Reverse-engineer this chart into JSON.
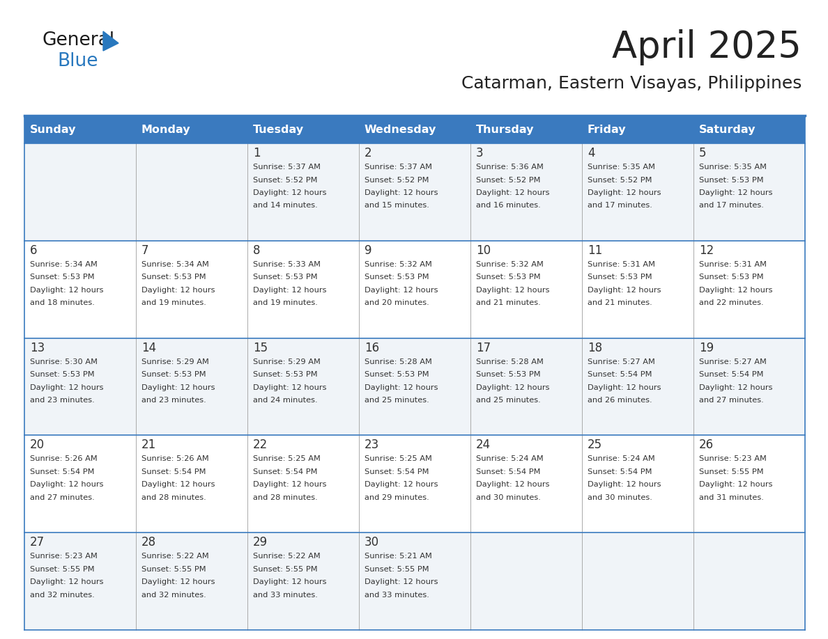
{
  "title": "April 2025",
  "subtitle": "Catarman, Eastern Visayas, Philippines",
  "days_of_week": [
    "Sunday",
    "Monday",
    "Tuesday",
    "Wednesday",
    "Thursday",
    "Friday",
    "Saturday"
  ],
  "header_bg": "#3a7abf",
  "header_text": "#ffffff",
  "row_bg_odd": "#f0f4f8",
  "row_bg_even": "#ffffff",
  "border_color": "#3a7abf",
  "text_color": "#333333",
  "title_color": "#222222",
  "subtitle_color": "#222222",
  "logo_general_color": "#1a1a1a",
  "logo_blue_color": "#2878be",
  "calendar_data": [
    {
      "day": 1,
      "col": 2,
      "row": 0,
      "sunrise": "5:37 AM",
      "sunset": "5:52 PM",
      "daylight_suffix": "14 minutes."
    },
    {
      "day": 2,
      "col": 3,
      "row": 0,
      "sunrise": "5:37 AM",
      "sunset": "5:52 PM",
      "daylight_suffix": "15 minutes."
    },
    {
      "day": 3,
      "col": 4,
      "row": 0,
      "sunrise": "5:36 AM",
      "sunset": "5:52 PM",
      "daylight_suffix": "16 minutes."
    },
    {
      "day": 4,
      "col": 5,
      "row": 0,
      "sunrise": "5:35 AM",
      "sunset": "5:52 PM",
      "daylight_suffix": "17 minutes."
    },
    {
      "day": 5,
      "col": 6,
      "row": 0,
      "sunrise": "5:35 AM",
      "sunset": "5:53 PM",
      "daylight_suffix": "17 minutes."
    },
    {
      "day": 6,
      "col": 0,
      "row": 1,
      "sunrise": "5:34 AM",
      "sunset": "5:53 PM",
      "daylight_suffix": "18 minutes."
    },
    {
      "day": 7,
      "col": 1,
      "row": 1,
      "sunrise": "5:34 AM",
      "sunset": "5:53 PM",
      "daylight_suffix": "19 minutes."
    },
    {
      "day": 8,
      "col": 2,
      "row": 1,
      "sunrise": "5:33 AM",
      "sunset": "5:53 PM",
      "daylight_suffix": "19 minutes."
    },
    {
      "day": 9,
      "col": 3,
      "row": 1,
      "sunrise": "5:32 AM",
      "sunset": "5:53 PM",
      "daylight_suffix": "20 minutes."
    },
    {
      "day": 10,
      "col": 4,
      "row": 1,
      "sunrise": "5:32 AM",
      "sunset": "5:53 PM",
      "daylight_suffix": "21 minutes."
    },
    {
      "day": 11,
      "col": 5,
      "row": 1,
      "sunrise": "5:31 AM",
      "sunset": "5:53 PM",
      "daylight_suffix": "21 minutes."
    },
    {
      "day": 12,
      "col": 6,
      "row": 1,
      "sunrise": "5:31 AM",
      "sunset": "5:53 PM",
      "daylight_suffix": "22 minutes."
    },
    {
      "day": 13,
      "col": 0,
      "row": 2,
      "sunrise": "5:30 AM",
      "sunset": "5:53 PM",
      "daylight_suffix": "23 minutes."
    },
    {
      "day": 14,
      "col": 1,
      "row": 2,
      "sunrise": "5:29 AM",
      "sunset": "5:53 PM",
      "daylight_suffix": "23 minutes."
    },
    {
      "day": 15,
      "col": 2,
      "row": 2,
      "sunrise": "5:29 AM",
      "sunset": "5:53 PM",
      "daylight_suffix": "24 minutes."
    },
    {
      "day": 16,
      "col": 3,
      "row": 2,
      "sunrise": "5:28 AM",
      "sunset": "5:53 PM",
      "daylight_suffix": "25 minutes."
    },
    {
      "day": 17,
      "col": 4,
      "row": 2,
      "sunrise": "5:28 AM",
      "sunset": "5:53 PM",
      "daylight_suffix": "25 minutes."
    },
    {
      "day": 18,
      "col": 5,
      "row": 2,
      "sunrise": "5:27 AM",
      "sunset": "5:54 PM",
      "daylight_suffix": "26 minutes."
    },
    {
      "day": 19,
      "col": 6,
      "row": 2,
      "sunrise": "5:27 AM",
      "sunset": "5:54 PM",
      "daylight_suffix": "27 minutes."
    },
    {
      "day": 20,
      "col": 0,
      "row": 3,
      "sunrise": "5:26 AM",
      "sunset": "5:54 PM",
      "daylight_suffix": "27 minutes."
    },
    {
      "day": 21,
      "col": 1,
      "row": 3,
      "sunrise": "5:26 AM",
      "sunset": "5:54 PM",
      "daylight_suffix": "28 minutes."
    },
    {
      "day": 22,
      "col": 2,
      "row": 3,
      "sunrise": "5:25 AM",
      "sunset": "5:54 PM",
      "daylight_suffix": "28 minutes."
    },
    {
      "day": 23,
      "col": 3,
      "row": 3,
      "sunrise": "5:25 AM",
      "sunset": "5:54 PM",
      "daylight_suffix": "29 minutes."
    },
    {
      "day": 24,
      "col": 4,
      "row": 3,
      "sunrise": "5:24 AM",
      "sunset": "5:54 PM",
      "daylight_suffix": "30 minutes."
    },
    {
      "day": 25,
      "col": 5,
      "row": 3,
      "sunrise": "5:24 AM",
      "sunset": "5:54 PM",
      "daylight_suffix": "30 minutes."
    },
    {
      "day": 26,
      "col": 6,
      "row": 3,
      "sunrise": "5:23 AM",
      "sunset": "5:55 PM",
      "daylight_suffix": "31 minutes."
    },
    {
      "day": 27,
      "col": 0,
      "row": 4,
      "sunrise": "5:23 AM",
      "sunset": "5:55 PM",
      "daylight_suffix": "32 minutes."
    },
    {
      "day": 28,
      "col": 1,
      "row": 4,
      "sunrise": "5:22 AM",
      "sunset": "5:55 PM",
      "daylight_suffix": "32 minutes."
    },
    {
      "day": 29,
      "col": 2,
      "row": 4,
      "sunrise": "5:22 AM",
      "sunset": "5:55 PM",
      "daylight_suffix": "33 minutes."
    },
    {
      "day": 30,
      "col": 3,
      "row": 4,
      "sunrise": "5:21 AM",
      "sunset": "5:55 PM",
      "daylight_suffix": "33 minutes."
    }
  ]
}
